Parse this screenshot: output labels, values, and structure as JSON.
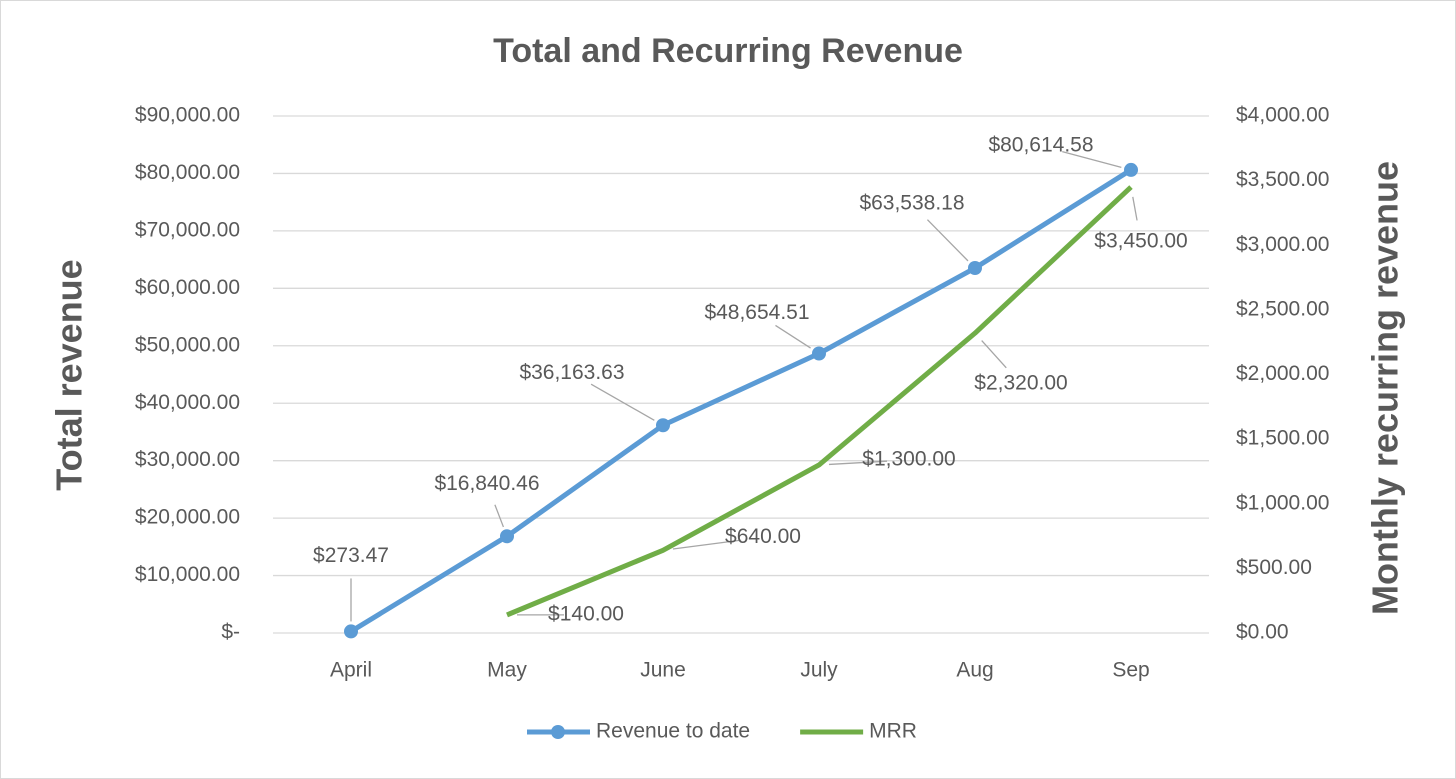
{
  "chart_data": {
    "type": "line",
    "title": "Total and Recurring Revenue",
    "y_label": "Total revenue",
    "y2_label": "Monthly recurring revenue",
    "categories": [
      "April",
      "May",
      "June",
      "July",
      "Aug",
      "Sep"
    ],
    "series": [
      {
        "name": "Revenue to date",
        "color": "#5b9bd5",
        "marker": true,
        "values": [
          273.47,
          16840.46,
          36163.63,
          48654.51,
          63538.18,
          80614.58
        ],
        "value_labels": [
          "$273.47",
          "$16,840.46",
          "$36,163.63",
          "$48,654.51",
          "$63,538.18",
          "$80,614.58"
        ]
      },
      {
        "name": "MRR",
        "color": "#70ad47",
        "axis": "y2",
        "marker": false,
        "values": [
          null,
          140,
          640,
          1300,
          2320,
          3450
        ],
        "value_labels": [
          null,
          "$140.00",
          "$640.00",
          "$1,300.00",
          "$2,320.00",
          "$3,450.00"
        ]
      }
    ],
    "ylim": [
      0,
      90000
    ],
    "yticks": [
      {
        "value": 0,
        "label": "$-"
      },
      {
        "value": 10000,
        "label": "$10,000.00"
      },
      {
        "value": 20000,
        "label": "$20,000.00"
      },
      {
        "value": 30000,
        "label": "$30,000.00"
      },
      {
        "value": 40000,
        "label": "$40,000.00"
      },
      {
        "value": 50000,
        "label": "$50,000.00"
      },
      {
        "value": 60000,
        "label": "$60,000.00"
      },
      {
        "value": 70000,
        "label": "$70,000.00"
      },
      {
        "value": 80000,
        "label": "$80,000.00"
      },
      {
        "value": 90000,
        "label": "$90,000.00"
      }
    ],
    "y2lim": [
      0,
      4000
    ],
    "y2ticks": [
      {
        "value": 0,
        "label": "$0.00"
      },
      {
        "value": 500,
        "label": "$500.00"
      },
      {
        "value": 1000,
        "label": "$1,000.00"
      },
      {
        "value": 1500,
        "label": "$1,500.00"
      },
      {
        "value": 2000,
        "label": "$2,000.00"
      },
      {
        "value": 2500,
        "label": "$2,500.00"
      },
      {
        "value": 3000,
        "label": "$3,000.00"
      },
      {
        "value": 3500,
        "label": "$3,500.00"
      },
      {
        "value": 4000,
        "label": "$4,000.00"
      }
    ],
    "grid": true,
    "legend": "bottom"
  }
}
